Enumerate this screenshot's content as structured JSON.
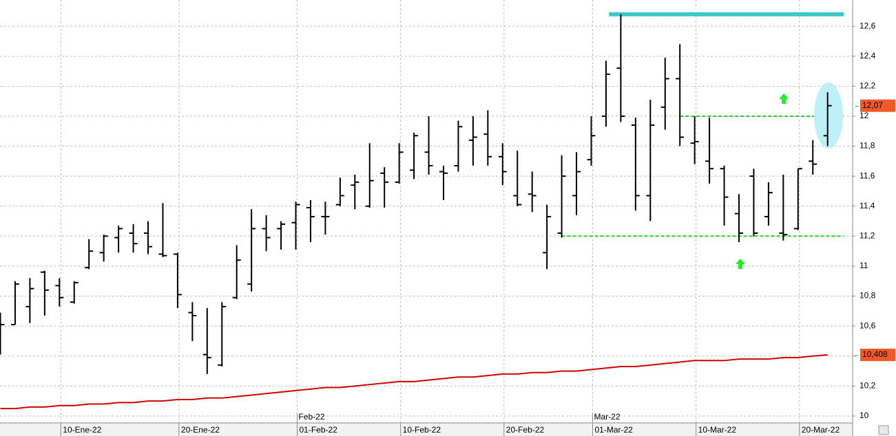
{
  "chart_data": {
    "type": "ohlc",
    "categories": [
      null,
      null,
      null,
      null,
      "10-Ene-22",
      null,
      null,
      null,
      null,
      null,
      null,
      null,
      "20-Ene-22",
      null,
      null,
      null,
      null,
      null,
      null,
      null,
      "01-Feb-22",
      null,
      null,
      null,
      null,
      null,
      null,
      "10-Feb-22",
      null,
      null,
      null,
      null,
      null,
      null,
      "20-Feb-22",
      null,
      null,
      null,
      null,
      null,
      "01-Mar-22",
      null,
      null,
      null,
      null,
      null,
      null,
      "10-Mar-22",
      null,
      null,
      null,
      null,
      null,
      null,
      "20-Mar-22",
      null,
      null
    ],
    "month_labels": [
      null,
      null,
      null,
      null,
      null,
      null,
      null,
      null,
      null,
      null,
      null,
      null,
      null,
      null,
      null,
      null,
      null,
      null,
      null,
      null,
      "Feb-22",
      null,
      null,
      null,
      null,
      null,
      null,
      null,
      null,
      null,
      null,
      null,
      null,
      null,
      null,
      null,
      null,
      null,
      null,
      null,
      "Mar-22",
      null,
      null,
      null,
      null,
      null,
      null,
      null,
      null,
      null,
      null,
      null,
      null,
      null,
      null,
      null,
      null
    ],
    "series": [
      {
        "color": "#000000",
        "open": [
          10.6,
          10.61,
          10.73,
          10.96,
          10.87,
          10.76,
          10.99,
          11.09,
          11.19,
          11.22,
          11.22,
          11.08,
          11.08,
          10.69,
          10.41,
          10.34,
          10.79,
          10.88,
          11.25,
          11.25,
          11.29,
          11.39,
          11.33,
          11.41,
          11.54,
          11.4,
          11.62,
          11.56,
          11.64,
          11.76,
          11.63,
          11.67,
          11.84,
          11.88,
          11.73,
          11.47,
          11.48,
          11.09,
          11.22,
          11.47,
          11.71,
          12.0,
          12.32,
          11.94,
          11.47,
          12.06,
          12.25,
          11.82,
          11.7,
          11.65,
          11.35,
          11.6,
          11.33,
          11.22,
          11.25,
          11.7,
          11.87
        ],
        "high": [
          10.69,
          10.9,
          10.92,
          10.97,
          10.92,
          10.9,
          11.18,
          11.21,
          11.27,
          11.28,
          11.3,
          11.42,
          11.09,
          10.76,
          10.72,
          10.76,
          11.14,
          11.38,
          11.34,
          11.3,
          11.43,
          11.44,
          11.43,
          11.59,
          11.61,
          11.82,
          11.66,
          11.82,
          11.89,
          12.0,
          11.67,
          11.97,
          12.0,
          12.04,
          11.82,
          11.77,
          11.63,
          11.41,
          11.74,
          11.76,
          12.0,
          12.37,
          12.68,
          11.99,
          12.11,
          12.39,
          12.48,
          12.0,
          11.99,
          11.67,
          11.48,
          11.65,
          11.56,
          11.61,
          11.65,
          11.84,
          12.16
        ],
        "low": [
          10.41,
          10.61,
          10.62,
          10.67,
          10.73,
          10.75,
          10.98,
          11.03,
          11.09,
          11.09,
          11.08,
          11.06,
          10.72,
          10.5,
          10.28,
          10.33,
          10.78,
          10.83,
          11.1,
          11.11,
          11.11,
          11.16,
          11.21,
          11.4,
          11.38,
          11.39,
          11.39,
          11.55,
          11.58,
          11.61,
          11.44,
          11.63,
          11.67,
          11.67,
          11.54,
          11.4,
          11.36,
          10.98,
          11.19,
          11.34,
          11.67,
          11.93,
          11.96,
          11.37,
          11.3,
          11.91,
          11.8,
          11.68,
          11.55,
          11.27,
          11.16,
          11.2,
          11.27,
          11.17,
          11.24,
          11.61,
          11.8
        ],
        "close": [
          10.61,
          10.88,
          10.85,
          10.84,
          10.79,
          10.89,
          11.1,
          11.2,
          11.25,
          11.15,
          11.13,
          11.07,
          10.81,
          10.67,
          10.39,
          10.73,
          11.04,
          11.25,
          11.19,
          11.28,
          11.41,
          11.33,
          11.33,
          11.47,
          11.56,
          11.57,
          11.56,
          11.76,
          11.87,
          11.67,
          11.62,
          11.93,
          11.86,
          11.73,
          11.63,
          11.41,
          11.47,
          11.33,
          11.6,
          11.63,
          11.87,
          12.28,
          12.0,
          11.47,
          11.94,
          12.25,
          11.86,
          11.83,
          11.65,
          11.46,
          11.22,
          11.22,
          11.49,
          11.21,
          11.65,
          11.68,
          12.07
        ]
      },
      {
        "color": "#d40000",
        "values": [
          10.05,
          10.05,
          10.06,
          10.06,
          10.07,
          10.07,
          10.08,
          10.08,
          10.09,
          10.09,
          10.1,
          10.1,
          10.11,
          10.11,
          10.12,
          10.12,
          10.13,
          10.14,
          10.15,
          10.16,
          10.17,
          10.18,
          10.19,
          10.19,
          10.2,
          10.21,
          10.22,
          10.23,
          10.23,
          10.24,
          10.25,
          10.26,
          10.26,
          10.27,
          10.28,
          10.28,
          10.29,
          10.29,
          10.3,
          10.3,
          10.31,
          10.32,
          10.33,
          10.33,
          10.34,
          10.35,
          10.36,
          10.37,
          10.37,
          10.37,
          10.38,
          10.38,
          10.38,
          10.39,
          10.39,
          10.4,
          10.408
        ]
      }
    ],
    "price_labels": [
      {
        "value": 12.07,
        "label": "12,07",
        "color": "#f05a28"
      },
      {
        "value": 10.408,
        "label": "10,408",
        "color": "#f05a28"
      }
    ],
    "levels": [
      {
        "value": 12.68,
        "color": "#3cc8c8",
        "dashed": false
      },
      {
        "value": 12.0,
        "color": "#22cc22",
        "dashed": true
      },
      {
        "value": 11.2,
        "color": "#22cc22",
        "dashed": true
      }
    ],
    "ylim": [
      9.954,
      12.775
    ],
    "yticks": [
      10,
      {
        "value": 10.2,
        "label": "10,2"
      },
      {
        "value": 10.4,
        "label": "10,4"
      },
      {
        "value": 10.6,
        "label": "10,6"
      },
      {
        "value": 10.8,
        "label": "10,8"
      },
      11,
      {
        "value": 11.2,
        "label": "11,2"
      },
      {
        "value": 11.4,
        "label": "11,4"
      },
      {
        "value": 11.6,
        "label": "11,6"
      },
      {
        "value": 11.8,
        "label": "11,8"
      },
      12,
      {
        "value": 12.2,
        "label": "12,2"
      },
      {
        "value": 12.4,
        "label": "12,4"
      },
      {
        "value": 12.6,
        "label": "12,6"
      }
    ],
    "grid": true
  }
}
